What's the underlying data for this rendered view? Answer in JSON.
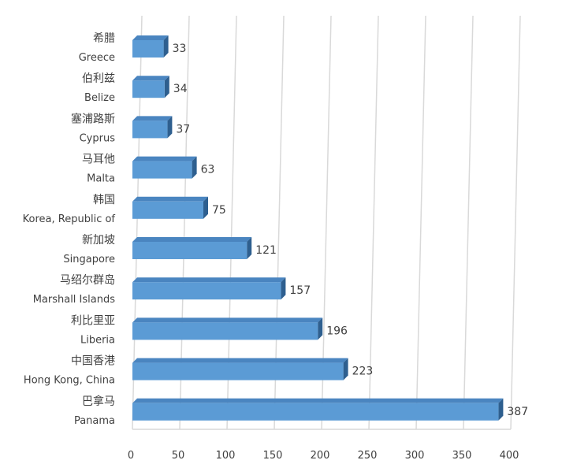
{
  "chart_data": {
    "type": "bar",
    "orientation": "horizontal",
    "style": "3d",
    "categories": [
      {
        "cn": "希腊",
        "en": "Greece"
      },
      {
        "cn": "伯利兹",
        "en": "Belize"
      },
      {
        "cn": "塞浦路斯",
        "en": "Cyprus"
      },
      {
        "cn": "马耳他",
        "en": "Malta"
      },
      {
        "cn": "韩国",
        "en": "Korea, Republic of"
      },
      {
        "cn": "新加坡",
        "en": "Singapore"
      },
      {
        "cn": "马绍尔群岛",
        "en": "Marshall Islands"
      },
      {
        "cn": "利比里亚",
        "en": "Liberia"
      },
      {
        "cn": "中国香港",
        "en": "Hong Kong, China"
      },
      {
        "cn": "巴拿马",
        "en": "Panama"
      }
    ],
    "values": [
      33,
      34,
      37,
      63,
      75,
      121,
      157,
      196,
      223,
      387
    ],
    "xlim": [
      0,
      400
    ],
    "xticks": [
      "0",
      "50",
      "100",
      "150",
      "200",
      "250",
      "300",
      "350",
      "400"
    ],
    "grid": true,
    "colors": {
      "bar_front": "#5b9bd5",
      "bar_top": "#4a85c0",
      "bar_side": "#2e5f8f",
      "grid": "#d9d9d9",
      "text": "#404040"
    }
  }
}
